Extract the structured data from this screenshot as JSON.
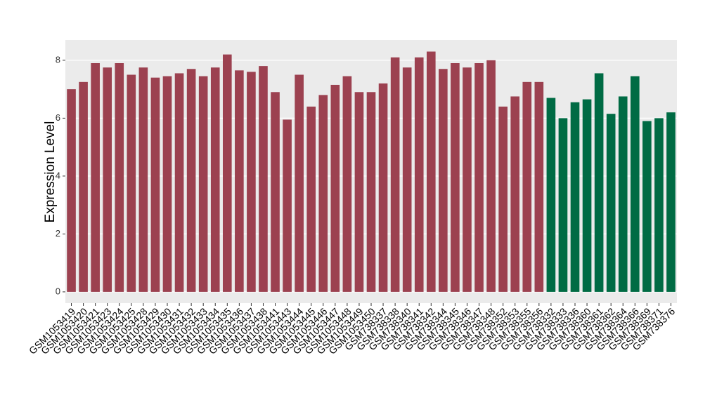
{
  "chart_data": {
    "type": "bar",
    "y_label": "Expression Level",
    "categories": [
      "GSM1053419",
      "GSM1053420",
      "GSM1053421",
      "GSM1053423",
      "GSM1053424",
      "GSM1053425",
      "GSM1053428",
      "GSM1053429",
      "GSM1053430",
      "GSM1053431",
      "GSM1053432",
      "GSM1053433",
      "GSM1053434",
      "GSM1053435",
      "GSM1053436",
      "GSM1053437",
      "GSM1053438",
      "GSM1053441",
      "GSM1053443",
      "GSM1053444",
      "GSM1053445",
      "GSM1053446",
      "GSM1053447",
      "GSM1053448",
      "GSM1053449",
      "GSM1053450",
      "GSM738337",
      "GSM738338",
      "GSM738340",
      "GSM738341",
      "GSM738342",
      "GSM738344",
      "GSM738345",
      "GSM738346",
      "GSM738347",
      "GSM738348",
      "GSM738352",
      "GSM738353",
      "GSM738355",
      "GSM738356",
      "GSM738332",
      "GSM738333",
      "GSM738336",
      "GSM738360",
      "GSM738361",
      "GSM738362",
      "GSM738364",
      "GSM738366",
      "GSM738369",
      "GSM738371",
      "GSM738376"
    ],
    "series": [
      {
        "color": "#9c4150",
        "values": [
          7.0,
          7.25,
          7.9,
          7.75,
          7.9,
          7.5,
          7.75,
          7.4,
          7.45,
          7.55,
          7.7,
          7.45,
          7.75,
          8.2,
          7.65,
          7.6,
          7.8,
          6.9,
          5.95,
          7.5,
          6.4,
          6.8,
          7.15,
          7.45,
          6.9,
          6.9,
          7.2,
          8.1,
          7.75,
          8.1,
          8.3,
          7.7,
          7.9,
          7.75,
          7.9,
          8.0,
          6.4,
          6.75,
          7.25,
          7.25,
          null,
          null,
          null,
          null,
          null,
          null,
          null,
          null,
          null,
          null,
          null
        ]
      },
      {
        "color": "#006b44",
        "values": [
          null,
          null,
          null,
          null,
          null,
          null,
          null,
          null,
          null,
          null,
          null,
          null,
          null,
          null,
          null,
          null,
          null,
          null,
          null,
          null,
          null,
          null,
          null,
          null,
          null,
          null,
          null,
          null,
          null,
          null,
          null,
          null,
          null,
          null,
          null,
          null,
          null,
          null,
          null,
          null,
          6.7,
          6.0,
          6.55,
          6.65,
          7.55,
          6.15,
          6.75,
          7.45,
          5.9,
          6.0,
          6.2
        ]
      }
    ],
    "ylim": [
      -0.39,
      8.7
    ],
    "yticks": [
      0,
      2,
      4,
      6,
      8
    ],
    "grid": true
  }
}
